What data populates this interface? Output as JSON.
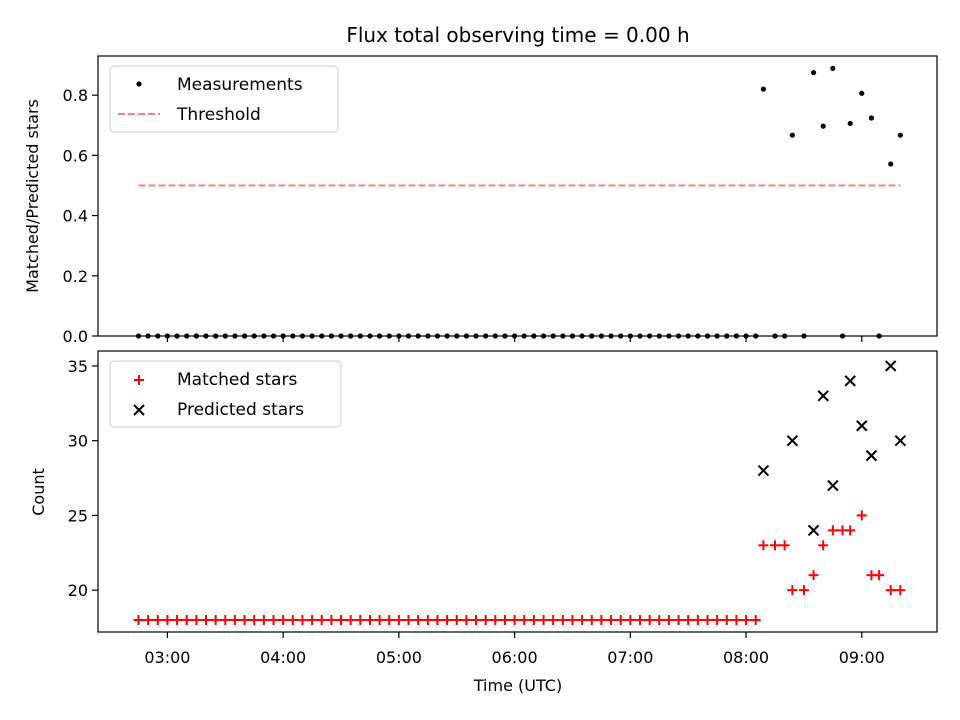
{
  "chart_data": [
    {
      "type": "scatter",
      "title": "Flux total observing time = 0.00 h",
      "xlabel": "",
      "ylabel": "Matched/Predicted stars",
      "ylim": [
        0,
        0.93
      ],
      "yticks": [
        0.0,
        0.2,
        0.4,
        0.6,
        0.8
      ],
      "ytick_labels": [
        "0.0",
        "0.2",
        "0.4",
        "0.6",
        "0.8"
      ],
      "legend_position": "top-left",
      "grid": false,
      "series": [
        {
          "name": "Measurements",
          "marker": "dot",
          "color": "#000000",
          "x": [
            2.75,
            2.8333,
            2.9167,
            3.0,
            3.0833,
            3.1667,
            3.25,
            3.3333,
            3.4167,
            3.5,
            3.5833,
            3.6667,
            3.75,
            3.8333,
            3.9167,
            4.0,
            4.0833,
            4.1667,
            4.25,
            4.3333,
            4.4167,
            4.5,
            4.5833,
            4.6667,
            4.75,
            4.8333,
            4.9167,
            5.0,
            5.0833,
            5.1667,
            5.25,
            5.3333,
            5.4167,
            5.5,
            5.5833,
            5.6667,
            5.75,
            5.8333,
            5.9167,
            6.0,
            6.0833,
            6.1667,
            6.25,
            6.3333,
            6.4167,
            6.5,
            6.5833,
            6.6667,
            6.75,
            6.8333,
            6.9167,
            7.0,
            7.0833,
            7.1667,
            7.25,
            7.3333,
            7.4167,
            7.5,
            7.5833,
            7.6667,
            7.75,
            7.8333,
            7.9167,
            8.0,
            8.0833,
            8.15,
            8.25,
            8.3333,
            8.4,
            8.5,
            8.5833,
            8.6667,
            8.75,
            8.8333,
            8.9,
            9.0,
            9.0833,
            9.15,
            9.25,
            9.3333
          ],
          "y": [
            0,
            0,
            0,
            0,
            0,
            0,
            0,
            0,
            0,
            0,
            0,
            0,
            0,
            0,
            0,
            0,
            0,
            0,
            0,
            0,
            0,
            0,
            0,
            0,
            0,
            0,
            0,
            0,
            0,
            0,
            0,
            0,
            0,
            0,
            0,
            0,
            0,
            0,
            0,
            0,
            0,
            0,
            0,
            0,
            0,
            0,
            0,
            0,
            0,
            0,
            0,
            0,
            0,
            0,
            0,
            0,
            0,
            0,
            0,
            0,
            0,
            0,
            0,
            0,
            0,
            0.82,
            0,
            0,
            0.667,
            0,
            0.875,
            0.697,
            0.889,
            0,
            0.706,
            0.806,
            0.724,
            0,
            0.571,
            0.667
          ]
        },
        {
          "name": "Threshold",
          "marker": "dashed-line",
          "color": "#ff7f7f",
          "x": [
            2.75,
            9.3333
          ],
          "y": [
            0.5,
            0.5
          ]
        }
      ]
    },
    {
      "type": "scatter",
      "title": "",
      "xlabel": "Time (UTC)",
      "ylabel": "Count",
      "ylim": [
        17.2,
        36.0
      ],
      "yticks": [
        20,
        25,
        30,
        35
      ],
      "ytick_labels": [
        "20",
        "25",
        "30",
        "35"
      ],
      "xlim": [
        2.4,
        9.65
      ],
      "xticks": [
        3,
        4,
        5,
        6,
        7,
        8,
        9
      ],
      "xtick_labels": [
        "03:00",
        "04:00",
        "05:00",
        "06:00",
        "07:00",
        "08:00",
        "09:00"
      ],
      "legend_position": "top-left",
      "grid": false,
      "series": [
        {
          "name": "Matched stars",
          "marker": "plus",
          "color": "#ff0000",
          "x": [
            2.75,
            2.8333,
            2.9167,
            3.0,
            3.0833,
            3.1667,
            3.25,
            3.3333,
            3.4167,
            3.5,
            3.5833,
            3.6667,
            3.75,
            3.8333,
            3.9167,
            4.0,
            4.0833,
            4.1667,
            4.25,
            4.3333,
            4.4167,
            4.5,
            4.5833,
            4.6667,
            4.75,
            4.8333,
            4.9167,
            5.0,
            5.0833,
            5.1667,
            5.25,
            5.3333,
            5.4167,
            5.5,
            5.5833,
            5.6667,
            5.75,
            5.8333,
            5.9167,
            6.0,
            6.0833,
            6.1667,
            6.25,
            6.3333,
            6.4167,
            6.5,
            6.5833,
            6.6667,
            6.75,
            6.8333,
            6.9167,
            7.0,
            7.0833,
            7.1667,
            7.25,
            7.3333,
            7.4167,
            7.5,
            7.5833,
            7.6667,
            7.75,
            7.8333,
            7.9167,
            8.0,
            8.0833,
            8.15,
            8.25,
            8.3333,
            8.4,
            8.5,
            8.5833,
            8.6667,
            8.75,
            8.8333,
            8.9,
            9.0,
            9.0833,
            9.15,
            9.25,
            9.3333
          ],
          "y": [
            18,
            18,
            18,
            18,
            18,
            18,
            18,
            18,
            18,
            18,
            18,
            18,
            18,
            18,
            18,
            18,
            18,
            18,
            18,
            18,
            18,
            18,
            18,
            18,
            18,
            18,
            18,
            18,
            18,
            18,
            18,
            18,
            18,
            18,
            18,
            18,
            18,
            18,
            18,
            18,
            18,
            18,
            18,
            18,
            18,
            18,
            18,
            18,
            18,
            18,
            18,
            18,
            18,
            18,
            18,
            18,
            18,
            18,
            18,
            18,
            18,
            18,
            18,
            18,
            18,
            23,
            23,
            23,
            20,
            20,
            21,
            23,
            24,
            24,
            24,
            25,
            21,
            21,
            20,
            20
          ]
        },
        {
          "name": "Predicted stars",
          "marker": "x",
          "color": "#000000",
          "x": [
            8.15,
            8.4,
            8.5833,
            8.6667,
            8.75,
            8.9,
            9.0,
            9.0833,
            9.25,
            9.3333
          ],
          "y": [
            28,
            30,
            24,
            33,
            27,
            34,
            31,
            29,
            35,
            30
          ]
        }
      ]
    }
  ]
}
